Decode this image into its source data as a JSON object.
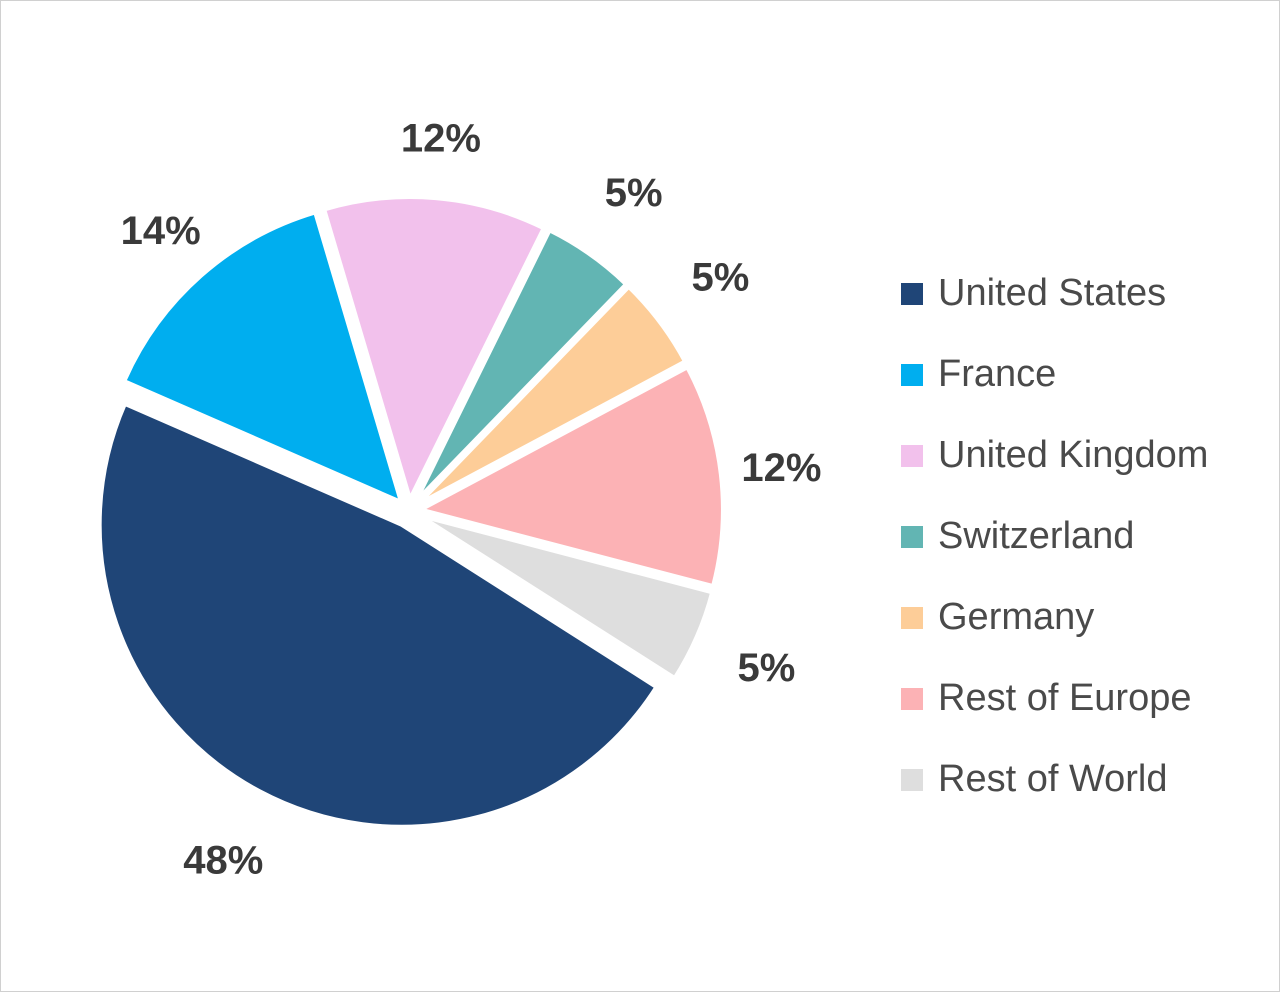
{
  "chart_data": {
    "type": "pie",
    "title": "",
    "legend_position": "right",
    "categories": [
      "United States",
      "France",
      "United Kingdom",
      "Switzerland",
      "Germany",
      "Rest of Europe",
      "Rest of World"
    ],
    "values": [
      48,
      14,
      12,
      5,
      5,
      12,
      5
    ],
    "labels": [
      "48%",
      "14%",
      "12%",
      "5%",
      "5%",
      "12%",
      "5%"
    ],
    "colors": [
      "#1f4577",
      "#00aeef",
      "#f2c1ec",
      "#62b5b3",
      "#fdcd98",
      "#fcb2b5",
      "#dedede"
    ],
    "exploded": true
  }
}
